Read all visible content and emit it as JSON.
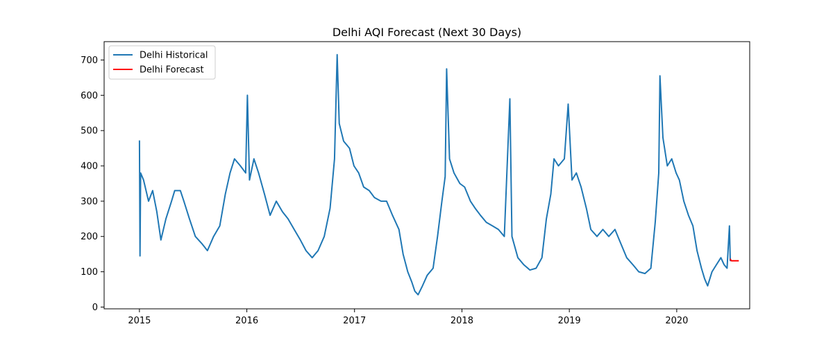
{
  "chart_data": {
    "type": "line",
    "title": "Delhi AQI Forecast (Next 30 Days)",
    "xlabel": "",
    "ylabel": "",
    "x_range": [
      "2014-09-03",
      "2020-09-05"
    ],
    "ylim": [
      -5,
      752
    ],
    "x_ticks": [
      {
        "date": "2015-01-01",
        "label": "2015"
      },
      {
        "date": "2016-01-01",
        "label": "2016"
      },
      {
        "date": "2017-01-01",
        "label": "2017"
      },
      {
        "date": "2018-01-01",
        "label": "2018"
      },
      {
        "date": "2019-01-01",
        "label": "2019"
      },
      {
        "date": "2020-01-01",
        "label": "2020"
      }
    ],
    "y_ticks": [
      0,
      100,
      200,
      300,
      400,
      500,
      600,
      700
    ],
    "grid": false,
    "legend_position": "top-left",
    "series": [
      {
        "name": "Delhi Historical",
        "color": "#1f77b4",
        "points": [
          [
            "2015-01-01",
            472
          ],
          [
            "2015-01-03",
            145
          ],
          [
            "2015-01-05",
            380
          ],
          [
            "2015-01-15",
            360
          ],
          [
            "2015-02-01",
            300
          ],
          [
            "2015-02-15",
            330
          ],
          [
            "2015-03-01",
            270
          ],
          [
            "2015-03-15",
            190
          ],
          [
            "2015-04-01",
            250
          ],
          [
            "2015-04-20",
            300
          ],
          [
            "2015-05-01",
            330
          ],
          [
            "2015-05-20",
            330
          ],
          [
            "2015-06-01",
            300
          ],
          [
            "2015-06-20",
            250
          ],
          [
            "2015-07-10",
            200
          ],
          [
            "2015-08-01",
            180
          ],
          [
            "2015-08-20",
            160
          ],
          [
            "2015-09-10",
            200
          ],
          [
            "2015-10-01",
            230
          ],
          [
            "2015-10-20",
            320
          ],
          [
            "2015-11-05",
            380
          ],
          [
            "2015-11-20",
            420
          ],
          [
            "2015-12-10",
            400
          ],
          [
            "2015-12-28",
            380
          ],
          [
            "2016-01-03",
            600
          ],
          [
            "2016-01-10",
            360
          ],
          [
            "2016-01-25",
            420
          ],
          [
            "2016-02-10",
            380
          ],
          [
            "2016-03-01",
            320
          ],
          [
            "2016-03-20",
            260
          ],
          [
            "2016-04-10",
            300
          ],
          [
            "2016-05-01",
            270
          ],
          [
            "2016-05-20",
            250
          ],
          [
            "2016-06-10",
            220
          ],
          [
            "2016-07-01",
            190
          ],
          [
            "2016-07-20",
            160
          ],
          [
            "2016-08-10",
            140
          ],
          [
            "2016-08-30",
            160
          ],
          [
            "2016-09-20",
            200
          ],
          [
            "2016-10-10",
            280
          ],
          [
            "2016-10-25",
            420
          ],
          [
            "2016-11-03",
            715
          ],
          [
            "2016-11-10",
            520
          ],
          [
            "2016-11-25",
            470
          ],
          [
            "2016-12-15",
            450
          ],
          [
            "2016-12-30",
            400
          ],
          [
            "2017-01-15",
            380
          ],
          [
            "2017-02-01",
            340
          ],
          [
            "2017-02-20",
            330
          ],
          [
            "2017-03-10",
            310
          ],
          [
            "2017-04-01",
            300
          ],
          [
            "2017-04-20",
            300
          ],
          [
            "2017-05-10",
            260
          ],
          [
            "2017-06-01",
            220
          ],
          [
            "2017-06-15",
            150
          ],
          [
            "2017-07-01",
            100
          ],
          [
            "2017-07-15",
            70
          ],
          [
            "2017-07-25",
            45
          ],
          [
            "2017-08-05",
            35
          ],
          [
            "2017-08-20",
            60
          ],
          [
            "2017-09-05",
            90
          ],
          [
            "2017-09-25",
            110
          ],
          [
            "2017-10-10",
            200
          ],
          [
            "2017-10-25",
            300
          ],
          [
            "2017-11-05",
            370
          ],
          [
            "2017-11-10",
            675
          ],
          [
            "2017-11-20",
            420
          ],
          [
            "2017-12-05",
            380
          ],
          [
            "2017-12-25",
            350
          ],
          [
            "2018-01-10",
            340
          ],
          [
            "2018-01-30",
            300
          ],
          [
            "2018-02-15",
            280
          ],
          [
            "2018-03-05",
            260
          ],
          [
            "2018-03-25",
            240
          ],
          [
            "2018-04-15",
            230
          ],
          [
            "2018-05-05",
            220
          ],
          [
            "2018-05-25",
            200
          ],
          [
            "2018-06-13",
            590
          ],
          [
            "2018-06-20",
            200
          ],
          [
            "2018-07-10",
            140
          ],
          [
            "2018-07-30",
            120
          ],
          [
            "2018-08-20",
            105
          ],
          [
            "2018-09-10",
            110
          ],
          [
            "2018-09-30",
            140
          ],
          [
            "2018-10-15",
            250
          ],
          [
            "2018-10-30",
            320
          ],
          [
            "2018-11-10",
            420
          ],
          [
            "2018-11-25",
            400
          ],
          [
            "2018-12-15",
            420
          ],
          [
            "2018-12-28",
            575
          ],
          [
            "2019-01-10",
            360
          ],
          [
            "2019-01-25",
            380
          ],
          [
            "2019-02-10",
            340
          ],
          [
            "2019-02-28",
            280
          ],
          [
            "2019-03-15",
            220
          ],
          [
            "2019-04-05",
            200
          ],
          [
            "2019-04-25",
            220
          ],
          [
            "2019-05-15",
            200
          ],
          [
            "2019-06-05",
            220
          ],
          [
            "2019-06-25",
            180
          ],
          [
            "2019-07-15",
            140
          ],
          [
            "2019-08-05",
            120
          ],
          [
            "2019-08-25",
            100
          ],
          [
            "2019-09-15",
            95
          ],
          [
            "2019-10-05",
            110
          ],
          [
            "2019-10-20",
            240
          ],
          [
            "2019-11-01",
            380
          ],
          [
            "2019-11-05",
            655
          ],
          [
            "2019-11-15",
            480
          ],
          [
            "2019-11-30",
            400
          ],
          [
            "2019-12-15",
            420
          ],
          [
            "2019-12-30",
            380
          ],
          [
            "2020-01-10",
            360
          ],
          [
            "2020-01-25",
            300
          ],
          [
            "2020-02-10",
            260
          ],
          [
            "2020-02-25",
            230
          ],
          [
            "2020-03-10",
            160
          ],
          [
            "2020-03-25",
            110
          ],
          [
            "2020-04-05",
            80
          ],
          [
            "2020-04-15",
            60
          ],
          [
            "2020-04-30",
            100
          ],
          [
            "2020-05-15",
            120
          ],
          [
            "2020-05-30",
            140
          ],
          [
            "2020-06-10",
            120
          ],
          [
            "2020-06-20",
            110
          ],
          [
            "2020-06-28",
            230
          ],
          [
            "2020-07-01",
            130
          ]
        ]
      },
      {
        "name": "Delhi Forecast",
        "color": "#ff0000",
        "points": [
          [
            "2020-07-01",
            137
          ],
          [
            "2020-07-03",
            132
          ],
          [
            "2020-07-06",
            131
          ],
          [
            "2020-07-10",
            131
          ],
          [
            "2020-07-15",
            131
          ],
          [
            "2020-07-20",
            131
          ],
          [
            "2020-07-25",
            131
          ],
          [
            "2020-07-30",
            131
          ]
        ]
      }
    ]
  }
}
